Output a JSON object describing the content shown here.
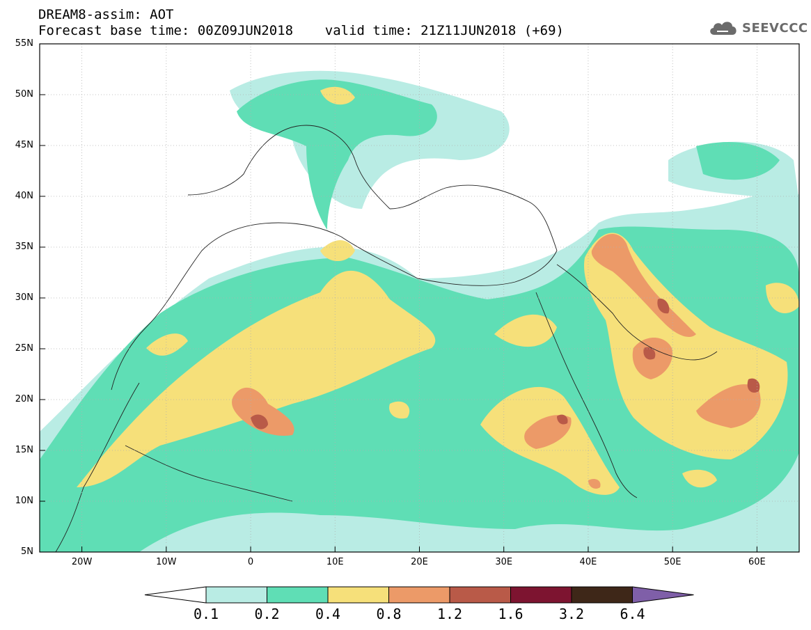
{
  "header": {
    "title": "DREAM8-assim: AOT",
    "subtitle": "Forecast base time: 00Z09JUN2018    valid time: 21Z11JUN2018 (+69)"
  },
  "logo": {
    "text": "SEEVCCC",
    "icon": "cloud-icon"
  },
  "map": {
    "lat_labels": [
      "55N",
      "50N",
      "45N",
      "40N",
      "35N",
      "30N",
      "25N",
      "20N",
      "15N",
      "10N",
      "5N"
    ],
    "lon_labels": [
      "20W",
      "10W",
      "0",
      "10E",
      "20E",
      "30E",
      "40E",
      "50E",
      "60E"
    ],
    "extent": {
      "lon_min": -25,
      "lon_max": 65,
      "lat_min": 5,
      "lat_max": 55
    }
  },
  "colorbar": {
    "labels": [
      "0.1",
      "0.2",
      "0.4",
      "0.8",
      "1.2",
      "1.6",
      "3.2",
      "6.4"
    ],
    "colors": [
      "#b9ece4",
      "#5fdeb5",
      "#f6e07a",
      "#ec9a68",
      "#b95a48",
      "#7d1430",
      "#3e2718",
      "#7f5fa8"
    ],
    "under_color": "#ffffff"
  }
}
